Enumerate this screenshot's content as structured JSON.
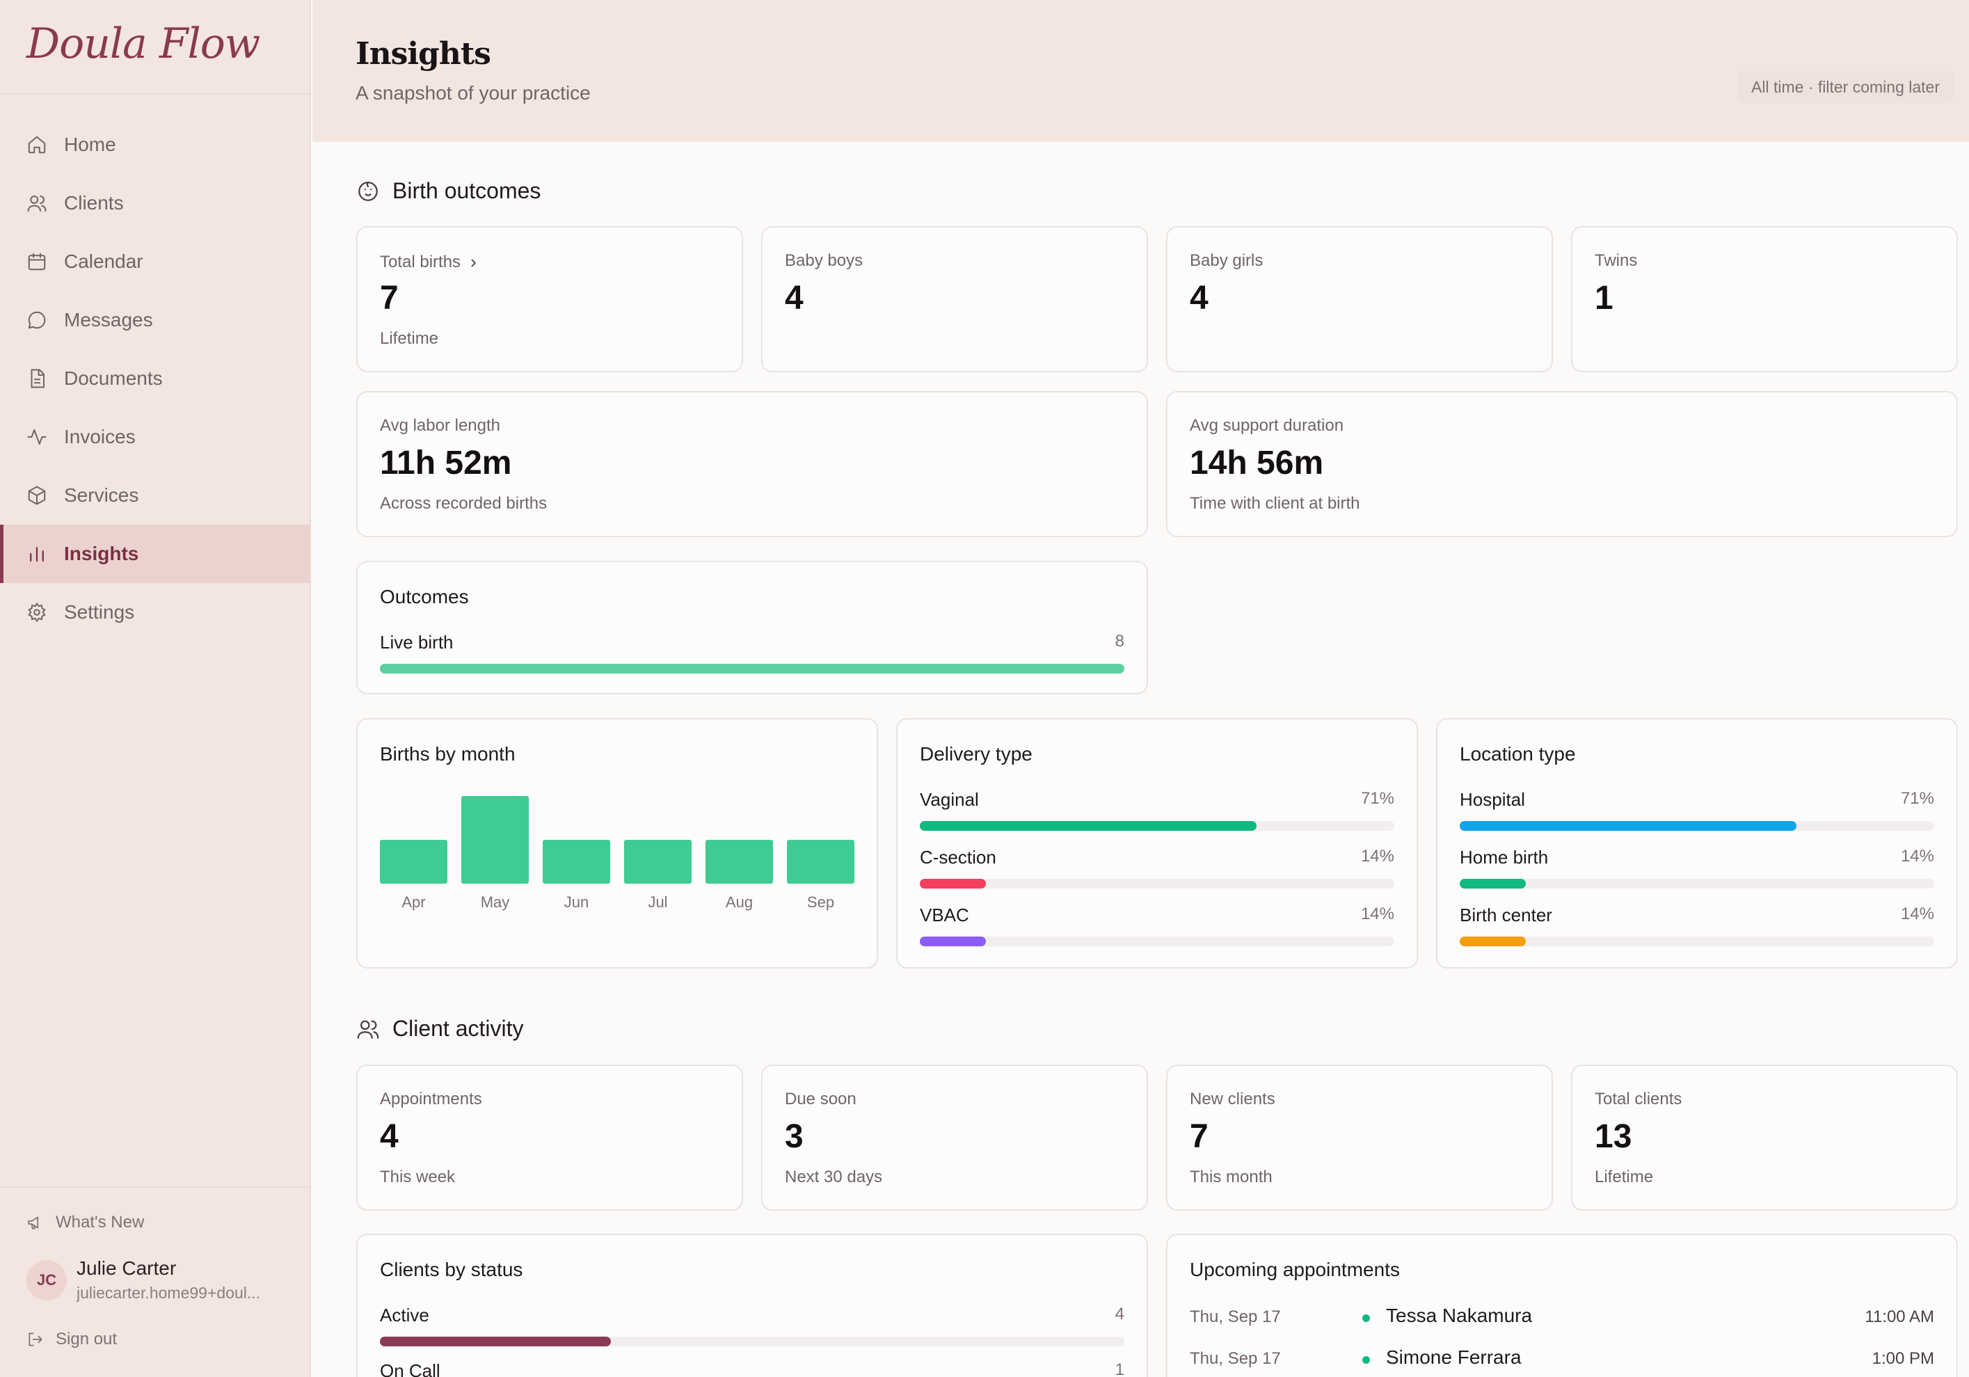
{
  "brand": {
    "logo_text": "Doula Flow"
  },
  "sidebar": {
    "items": [
      {
        "label": "Home",
        "icon": "home-icon"
      },
      {
        "label": "Clients",
        "icon": "users-icon"
      },
      {
        "label": "Calendar",
        "icon": "calendar-icon"
      },
      {
        "label": "Messages",
        "icon": "message-icon"
      },
      {
        "label": "Documents",
        "icon": "document-icon"
      },
      {
        "label": "Invoices",
        "icon": "activity-icon"
      },
      {
        "label": "Services",
        "icon": "box-icon"
      },
      {
        "label": "Insights",
        "icon": "bar-chart-icon",
        "active": true
      },
      {
        "label": "Settings",
        "icon": "gear-icon"
      }
    ],
    "whats_new": "What's New",
    "user": {
      "initials": "JC",
      "name": "Julie Carter",
      "email": "juliecarter.home99+doul..."
    },
    "sign_out": "Sign out"
  },
  "header": {
    "title": "Insights",
    "subtitle": "A snapshot of your practice",
    "filter": "All time · filter coming later"
  },
  "birth_outcomes": {
    "title": "Birth outcomes",
    "stats": [
      {
        "label": "Total births",
        "value": "7",
        "sub": "Lifetime",
        "has_chevron": true
      },
      {
        "label": "Baby boys",
        "value": "4",
        "sub": ""
      },
      {
        "label": "Baby girls",
        "value": "4",
        "sub": ""
      },
      {
        "label": "Twins",
        "value": "1",
        "sub": ""
      }
    ],
    "durations": [
      {
        "label": "Avg labor length",
        "value": "11h 52m",
        "sub": "Across recorded births"
      },
      {
        "label": "Avg support duration",
        "value": "14h 56m",
        "sub": "Time with client at birth"
      }
    ],
    "outcomes": {
      "title": "Outcomes",
      "rows": [
        {
          "label": "Live birth",
          "value": "8",
          "fraction": 1.0,
          "color": "#5dd0a0"
        }
      ]
    },
    "births_by_month": {
      "title": "Births by month"
    },
    "delivery_type": {
      "title": "Delivery type",
      "rows": [
        {
          "label": "Vaginal",
          "value": "71%",
          "fraction": 0.71,
          "color": "#10b981"
        },
        {
          "label": "C-section",
          "value": "14%",
          "fraction": 0.14,
          "color": "#f43f5e"
        },
        {
          "label": "VBAC",
          "value": "14%",
          "fraction": 0.14,
          "color": "#8b5cf6"
        }
      ]
    },
    "location_type": {
      "title": "Location type",
      "rows": [
        {
          "label": "Hospital",
          "value": "71%",
          "fraction": 0.71,
          "color": "#0ea5e9"
        },
        {
          "label": "Home birth",
          "value": "14%",
          "fraction": 0.14,
          "color": "#10b981"
        },
        {
          "label": "Birth center",
          "value": "14%",
          "fraction": 0.14,
          "color": "#f59e0b"
        }
      ]
    }
  },
  "client_activity": {
    "title": "Client activity",
    "stats": [
      {
        "label": "Appointments",
        "value": "4",
        "sub": "This week"
      },
      {
        "label": "Due soon",
        "value": "3",
        "sub": "Next 30 days"
      },
      {
        "label": "New clients",
        "value": "7",
        "sub": "This month"
      },
      {
        "label": "Total clients",
        "value": "13",
        "sub": "Lifetime"
      }
    ],
    "clients_by_status": {
      "title": "Clients by status",
      "rows": [
        {
          "label": "Active",
          "value": "4",
          "fraction": 0.31,
          "color": "#8a3a57"
        },
        {
          "label": "On Call",
          "value": "1",
          "fraction": 0.08,
          "color": "#8a3a57"
        }
      ]
    },
    "upcoming": {
      "title": "Upcoming appointments",
      "rows": [
        {
          "date": "Thu, Sep 17",
          "name": "Tessa Nakamura",
          "time": "11:00 AM"
        },
        {
          "date": "Thu, Sep 17",
          "name": "Simone Ferrara",
          "time": "1:00 PM"
        }
      ]
    }
  },
  "chart_data": {
    "type": "bar",
    "categories": [
      "Apr",
      "May",
      "Jun",
      "Jul",
      "Aug",
      "Sep"
    ],
    "values": [
      1,
      2,
      1,
      1,
      1,
      1
    ],
    "title": "Births by month",
    "xlabel": "",
    "ylabel": "",
    "ylim": [
      0,
      2
    ],
    "grid": false,
    "color": "#3ecb94"
  }
}
